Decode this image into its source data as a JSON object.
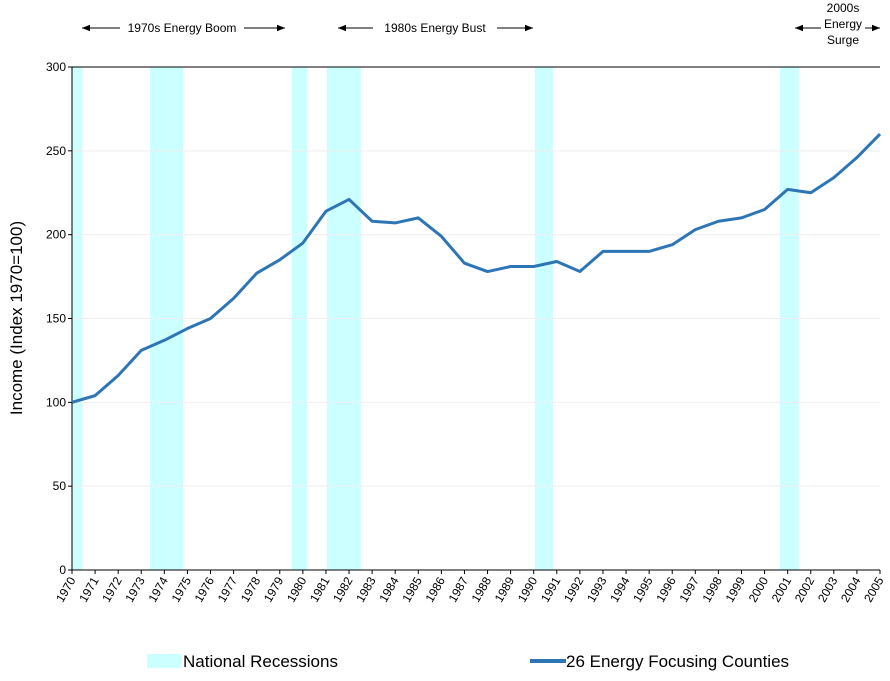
{
  "chart_data": {
    "type": "line",
    "y_label": "Income (Index 1970=100)",
    "annotations": [
      "1970s Energy Boom",
      "1980s Energy Bust",
      "2000s Energy Surge"
    ],
    "x": [
      1970,
      1971,
      1972,
      1973,
      1974,
      1975,
      1976,
      1977,
      1978,
      1979,
      1980,
      1981,
      1982,
      1983,
      1984,
      1985,
      1986,
      1987,
      1988,
      1989,
      1990,
      1991,
      1992,
      1993,
      1994,
      1995,
      1996,
      1997,
      1998,
      1999,
      2000,
      2001,
      2002,
      2003,
      2004,
      2005
    ],
    "series": [
      {
        "name": "26 Energy Focusing Counties",
        "color": "#2e75b6",
        "values": [
          100,
          104,
          116,
          131,
          137,
          144,
          150,
          162,
          177,
          185,
          195,
          214,
          221,
          208,
          207,
          210,
          199,
          183,
          178,
          181,
          181,
          184,
          178,
          190,
          190,
          190,
          194,
          203,
          208,
          210,
          215,
          227,
          225,
          234,
          246,
          260
        ]
      }
    ],
    "recessions": {
      "name": "National Recessions",
      "color": "#ccffff",
      "ranges": [
        [
          1970,
          1970.45
        ],
        [
          1973.38,
          1974.81
        ],
        [
          1979.53,
          1980.18
        ],
        [
          1981.04,
          1982.51
        ],
        [
          1990.05,
          1990.83
        ],
        [
          2000.66,
          2001.48
        ]
      ]
    },
    "xlim": [
      1970,
      2005
    ],
    "xticks": [
      1970,
      1971,
      1972,
      1973,
      1974,
      1975,
      1976,
      1977,
      1978,
      1979,
      1980,
      1981,
      1982,
      1983,
      1984,
      1985,
      1986,
      1987,
      1988,
      1989,
      1990,
      1991,
      1992,
      1993,
      1994,
      1995,
      1996,
      1997,
      1998,
      1999,
      2000,
      2001,
      2002,
      2003,
      2004,
      2005
    ],
    "ylim": [
      0,
      300
    ],
    "yticks": [
      0,
      50,
      100,
      150,
      200,
      250,
      300
    ],
    "grid": true
  }
}
